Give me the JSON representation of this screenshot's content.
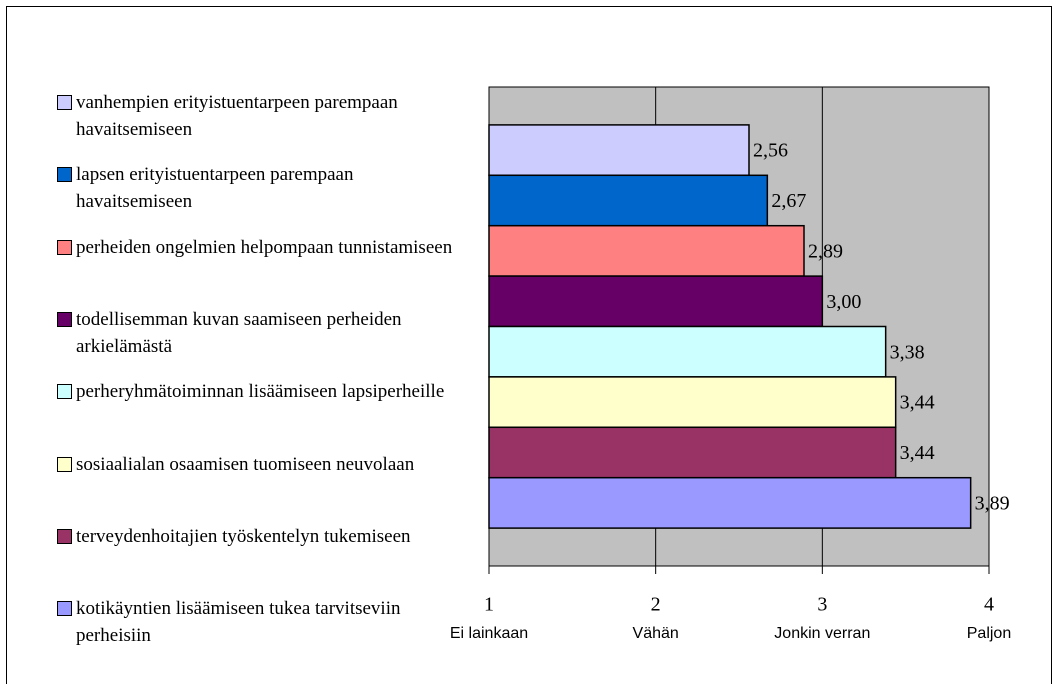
{
  "chart_data": {
    "type": "bar",
    "orientation": "horizontal",
    "series": [
      {
        "name": "vanhempien erityistuentarpeen parempaan havaitsemiseen",
        "color": "#ccccff",
        "values": [
          2.56
        ],
        "value_labels": [
          "2,56"
        ]
      },
      {
        "name": "lapsen erityistuentarpeen parempaan havaitsemiseen",
        "color": "#0066cc",
        "values": [
          2.67
        ],
        "value_labels": [
          "2,67"
        ]
      },
      {
        "name": "perheiden ongelmien helpompaan tunnistamiseen",
        "color": "#ff8080",
        "values": [
          2.89
        ],
        "value_labels": [
          "2,89"
        ]
      },
      {
        "name": "todellisemman kuvan saamiseen perheiden arkielämästä",
        "color": "#660066",
        "values": [
          3.0
        ],
        "value_labels": [
          "3,00"
        ]
      },
      {
        "name": "perheryhmätoiminnan lisäämiseen lapsiperheille",
        "color": "#ccffff",
        "values": [
          3.38
        ],
        "value_labels": [
          "3,38"
        ]
      },
      {
        "name": "sosiaalialan osaamisen tuomiseen neuvolaan",
        "color": "#ffffcc",
        "values": [
          3.44
        ],
        "value_labels": [
          "3,44"
        ]
      },
      {
        "name": "terveydenhoitajien työskentelyn tukemiseen",
        "color": "#993366",
        "values": [
          3.44
        ],
        "value_labels": [
          "3,44"
        ]
      },
      {
        "name": "kotikäyntien lisäämiseen tukea tarvitseviin perheisiin",
        "color": "#9999ff",
        "values": [
          3.89
        ],
        "value_labels": [
          "3,89"
        ]
      }
    ],
    "xlim": [
      1,
      4
    ],
    "xticks": [
      1,
      2,
      3,
      4
    ],
    "xtick_descriptions": [
      "Ei lainkaan",
      "Vähän",
      "Jonkin verran",
      "Paljon"
    ],
    "grid": true,
    "legend": "left"
  }
}
